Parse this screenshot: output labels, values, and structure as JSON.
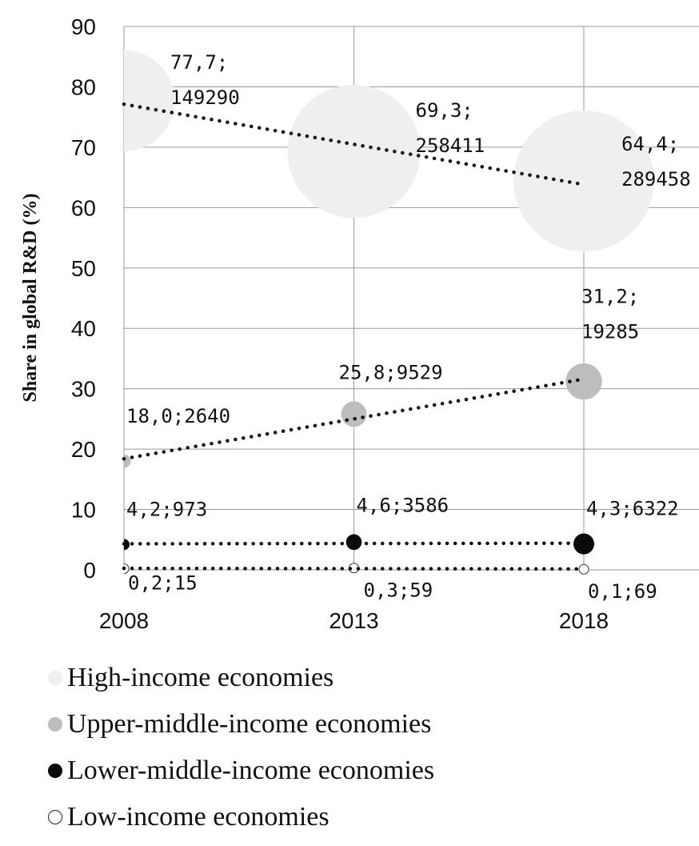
{
  "chart_data": {
    "type": "scatter",
    "ylabel": "Share in global R&D (%)",
    "xlabel": "",
    "x_categories": [
      "2008",
      "2013",
      "2018"
    ],
    "ylim": [
      0,
      90
    ],
    "yticks": [
      "0",
      "10",
      "20",
      "30",
      "40",
      "50",
      "60",
      "70",
      "80",
      "90"
    ],
    "grid": true,
    "legend_position": "bottom",
    "series": [
      {
        "name": "High-income economies",
        "color": "#efefef",
        "x": [
          "2008",
          "2013",
          "2018"
        ],
        "y": [
          77.7,
          69.3,
          64.4
        ],
        "size": [
          149290,
          258411,
          289458
        ],
        "labels": [
          [
            "77,7;",
            "149290"
          ],
          [
            "69,3;",
            "258411"
          ],
          [
            "64,4;",
            "289458"
          ]
        ]
      },
      {
        "name": "Upper-middle-income economies",
        "color": "#bdbdbd",
        "x": [
          "2008",
          "2013",
          "2018"
        ],
        "y": [
          18.0,
          25.8,
          31.2
        ],
        "size": [
          2640,
          9529,
          19285
        ],
        "labels": [
          [
            "18,0;2640"
          ],
          [
            "25,8;9529"
          ],
          [
            "31,2;",
            "19285"
          ]
        ]
      },
      {
        "name": "Lower-middle-income economies",
        "color": "#0a0a0a",
        "x": [
          "2008",
          "2013",
          "2018"
        ],
        "y": [
          4.2,
          4.6,
          4.3
        ],
        "size": [
          973,
          3586,
          6322
        ],
        "labels": [
          [
            "4,2;973"
          ],
          [
            "4,6;3586"
          ],
          [
            "4,3;6322"
          ]
        ]
      },
      {
        "name": "Low-income economies",
        "color": "#ffffff",
        "x": [
          "2008",
          "2013",
          "2018"
        ],
        "y": [
          0.2,
          0.3,
          0.1
        ],
        "size": [
          15,
          59,
          69
        ],
        "labels": [
          [
            "0,2;15"
          ],
          [
            "0,3;59"
          ],
          [
            "0,1;69"
          ]
        ]
      }
    ]
  }
}
